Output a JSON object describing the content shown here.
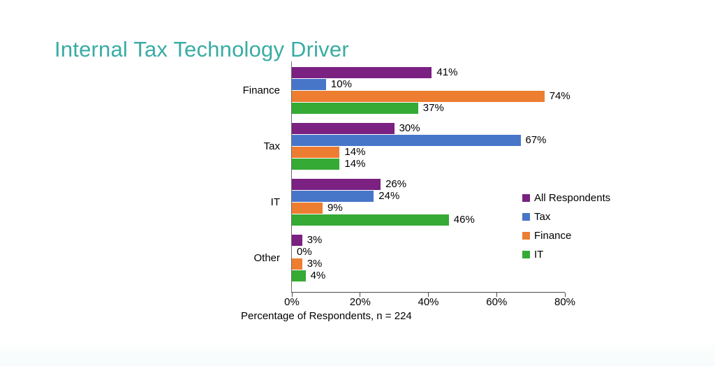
{
  "slide": {
    "title": "Internal Tax Technology Driver",
    "title_color": "#39ACA4",
    "axis_color": "#4a4a4a",
    "text_color": "#000000"
  },
  "chart_data": {
    "type": "bar",
    "orientation": "horizontal",
    "title": "Internal Tax Technology Driver",
    "categories": [
      "Finance",
      "Tax",
      "IT",
      "Other"
    ],
    "series": [
      {
        "name": "All Respondents",
        "color": "#7A2182",
        "values": [
          41,
          30,
          26,
          3
        ]
      },
      {
        "name": "Tax",
        "color": "#4776C9",
        "values": [
          10,
          67,
          24,
          0
        ]
      },
      {
        "name": "Finance",
        "color": "#ED7D31",
        "values": [
          74,
          14,
          9,
          3
        ]
      },
      {
        "name": "IT",
        "color": "#35AA35",
        "values": [
          37,
          14,
          46,
          4
        ]
      }
    ],
    "value_suffix": "%",
    "data_labels": true,
    "xlabel": "Percentage of Respondents, n = 224",
    "x_ticks": [
      "0%",
      "20%",
      "40%",
      "60%",
      "80%"
    ],
    "xlim": [
      0,
      80
    ],
    "grid": false,
    "legend_position": "right"
  }
}
